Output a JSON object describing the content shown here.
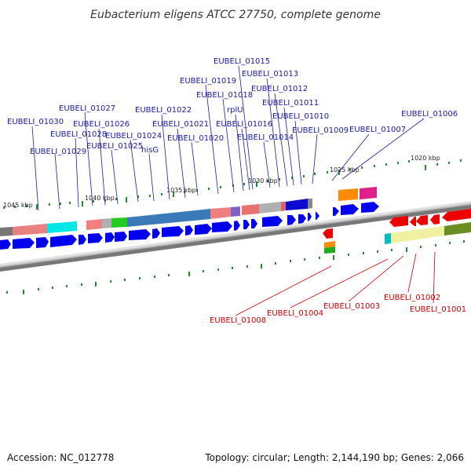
{
  "title": "Eubacterium eligens ATCC 27750, complete genome",
  "footer": {
    "accession": "Accession: NC_012778",
    "summary": "Topology: circular; Length: 2,144,190 bp; Genes: 2,066"
  },
  "scale_labels": [
    "1045 kbp",
    "1040 kbp",
    "1035 kbp",
    "1030 kbp",
    "1025 kbp",
    "1020 kbp"
  ],
  "gene_labels_forward": [
    "EUBELI_01030",
    "EUBELI_01029",
    "EUBELI_01028",
    "EUBELI_01027",
    "EUBELI_01026",
    "EUBELI_01025",
    "EUBELI_01024",
    "hisG",
    "EUBELI_01022",
    "EUBELI_01021",
    "EUBELI_01020",
    "EUBELI_01019",
    "EUBELI_01018",
    "rplU",
    "EUBELI_01016",
    "EUBELI_01015",
    "EUBELI_01014",
    "EUBELI_01013",
    "EUBELI_01012",
    "EUBELI_01011",
    "EUBELI_01010",
    "EUBELI_01009",
    "EUBELI_01007",
    "EUBELI_01006"
  ],
  "gene_labels_reverse": [
    "EUBELI_01008",
    "EUBELI_01004",
    "EUBELI_01003",
    "EUBELI_01002",
    "EUBELI_01001"
  ],
  "colors": {
    "forward_label": "#1a1aa6",
    "reverse_label": "#cc0000",
    "forward_gene": "#0000ee",
    "reverse_gene": "#ee0000",
    "tick": "#2a8a2a",
    "backbone": "#888888"
  }
}
